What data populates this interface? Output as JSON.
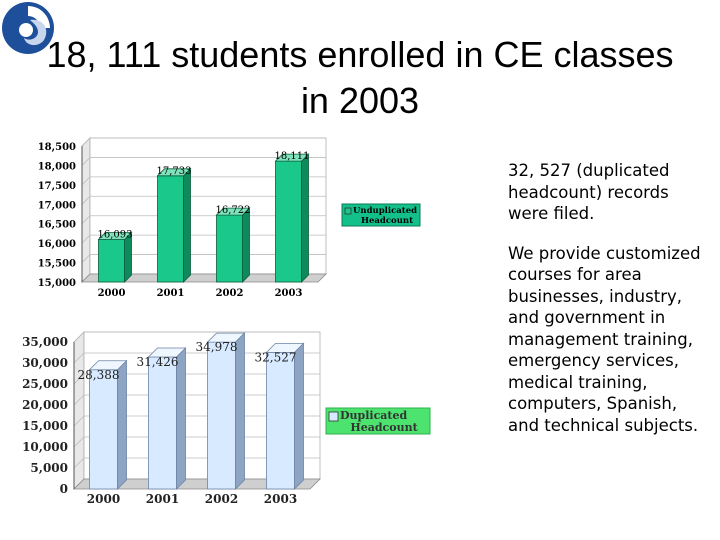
{
  "slide": {
    "title": "18, 111 students enrolled in CE classes in 2003",
    "bullets": [
      "32, 527 (duplicated headcount) records were filed.",
      "We provide customized courses for area businesses, industry, and government in management training, emergency services, medical training, computers, Spanish, and technical subjects."
    ]
  },
  "colors": {
    "bar_top": "#19c88a",
    "bar_bottom": "#d7eaff",
    "legend_top_bg": "#13c08a",
    "legend_bottom_bg": "#4ce36f"
  },
  "chart_data": [
    {
      "type": "bar",
      "categories": [
        "2000",
        "2001",
        "2002",
        "2003"
      ],
      "series": [
        {
          "name": "Unduplicated Headcount",
          "values": [
            16093,
            17733,
            16722,
            18111
          ]
        }
      ],
      "data_labels": [
        "16,093",
        "17,733",
        "16,722",
        "18,111"
      ],
      "yticks": [
        "15,000",
        "15,500",
        "16,000",
        "16,500",
        "17,000",
        "17,500",
        "18,000",
        "18,500"
      ],
      "ylim": [
        15000,
        18500
      ],
      "grid": true,
      "legend": "right"
    },
    {
      "type": "bar",
      "categories": [
        "2000",
        "2001",
        "2002",
        "2003"
      ],
      "series": [
        {
          "name": "Duplicated Headcount",
          "values": [
            28388,
            31426,
            34978,
            32527
          ]
        }
      ],
      "data_labels": [
        "28,388",
        "31,426",
        "34,978",
        "32,527"
      ],
      "yticks": [
        "0",
        "5,000",
        "10,000",
        "15,000",
        "20,000",
        "25,000",
        "30,000",
        "35,000"
      ],
      "ylim": [
        0,
        35000
      ],
      "grid": true,
      "legend": "right"
    }
  ]
}
